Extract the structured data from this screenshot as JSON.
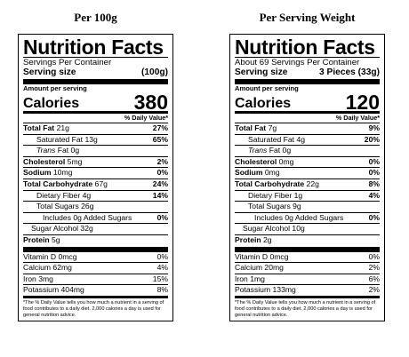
{
  "panels": [
    {
      "heading": "Per 100g",
      "title": "Nutrition Facts",
      "servings_per_container": "Servings Per Container",
      "serving_size_label": "Serving size",
      "serving_size_value": "(100g)",
      "amount_per_serving": "Amount per serving",
      "calories_label": "Calories",
      "calories_value": "380",
      "dv_header": "% Daily Value*",
      "total_fat": "Total Fat",
      "total_fat_amt": "21g",
      "total_fat_dv": "27%",
      "sat_fat": "Saturated Fat 13g",
      "sat_fat_dv": "65%",
      "trans_fat_word": "Trans",
      "trans_fat_rest": "Fat 0g",
      "cholesterol": "Cholesterol",
      "cholesterol_amt": "5mg",
      "cholesterol_dv": "2%",
      "sodium": "Sodium",
      "sodium_amt": "10mg",
      "sodium_dv": "0%",
      "carb": "Total Carbohydrate",
      "carb_amt": "67g",
      "carb_dv": "24%",
      "fiber": "Dietary Fiber 4g",
      "fiber_dv": "14%",
      "sugars": "Total Sugars 26g",
      "added_sugars": "Includes 0g Added Sugars",
      "added_sugars_dv": "0%",
      "sugar_alcohol": "Sugar Alcohol 32g",
      "protein": "Protein",
      "protein_amt": "5g",
      "vit_d": "Vitamin D 0mcg",
      "vit_d_dv": "0%",
      "calcium": "Calcium 62mg",
      "calcium_dv": "4%",
      "iron": "Iron 3mg",
      "iron_dv": "15%",
      "potassium": "Potassium 404mg",
      "potassium_dv": "8%",
      "footnote": "*The % Daily Value tells you how much a nutrient in a serving of food contributes to a daily diet. 2,000 calories a day is used for general nutrition advice."
    },
    {
      "heading": "Per Serving Weight",
      "title": "Nutrition Facts",
      "servings_per_container": "About 69 Servings Per Container",
      "serving_size_label": "Serving size",
      "serving_size_value": "3 Pieces (33g)",
      "amount_per_serving": "Amount per serving",
      "calories_label": "Calories",
      "calories_value": "120",
      "dv_header": "% Daily Value*",
      "total_fat": "Total Fat",
      "total_fat_amt": "7g",
      "total_fat_dv": "9%",
      "sat_fat": "Saturated Fat 4g",
      "sat_fat_dv": "20%",
      "trans_fat_word": "Trans",
      "trans_fat_rest": "Fat 0g",
      "cholesterol": "Cholesterol",
      "cholesterol_amt": "0mg",
      "cholesterol_dv": "0%",
      "sodium": "Sodium",
      "sodium_amt": "0mg",
      "sodium_dv": "0%",
      "carb": "Total Carbohydrate",
      "carb_amt": "22g",
      "carb_dv": "8%",
      "fiber": "Dietary Fiber 1g",
      "fiber_dv": "4%",
      "sugars": "Total Sugars 9g",
      "added_sugars": "Includes 0g Added Sugars",
      "added_sugars_dv": "0%",
      "sugar_alcohol": "Sugar Alcohol 10g",
      "protein": "Protein",
      "protein_amt": "2g",
      "vit_d": "Vitamin D 0mcg",
      "vit_d_dv": "0%",
      "calcium": "Calcium 20mg",
      "calcium_dv": "2%",
      "iron": "Iron 1mg",
      "iron_dv": "6%",
      "potassium": "Potassium 133mg",
      "potassium_dv": "2%",
      "footnote": "*The % Daily Value tells you how much a nutrient in a serving of food contributes to a daily diet. 2,000 calories a day is used for general nutrition advice."
    }
  ]
}
